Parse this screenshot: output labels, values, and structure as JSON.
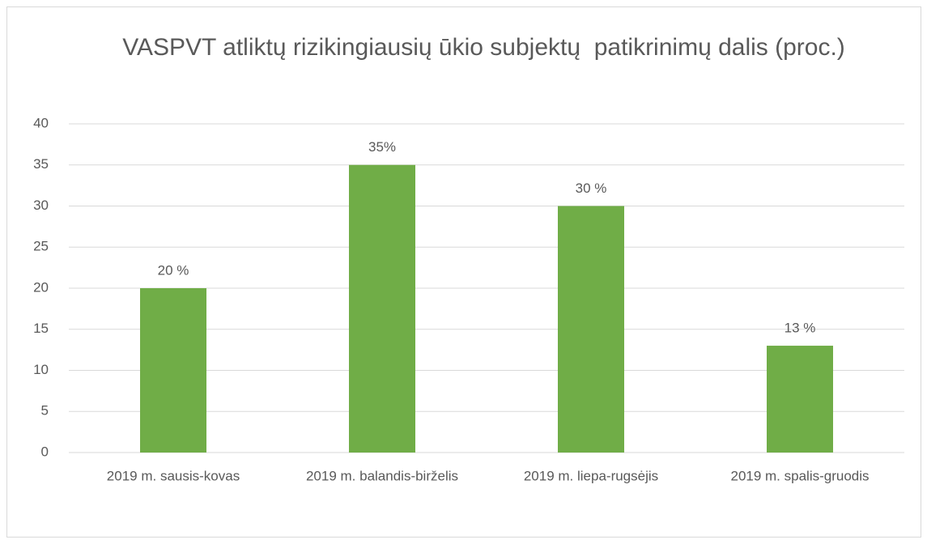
{
  "chart_data": {
    "type": "bar",
    "title": "VASPVT atliktų rizikingiausių ūkio subjektų  patikrinimų dalis (proc.)",
    "categories": [
      "2019 m. sausis-kovas",
      "2019 m. balandis-birželis",
      "2019 m. liepa-rugsėjis",
      "2019 m. spalis-gruodis"
    ],
    "values": [
      20,
      35,
      30,
      13
    ],
    "value_labels": [
      "20 %",
      "35%",
      "30 %",
      "13 %"
    ],
    "color": "#70ad47",
    "ylim": [
      0,
      40
    ],
    "yticks": [
      0,
      5,
      10,
      15,
      20,
      25,
      30,
      35,
      40
    ],
    "grid": true
  }
}
